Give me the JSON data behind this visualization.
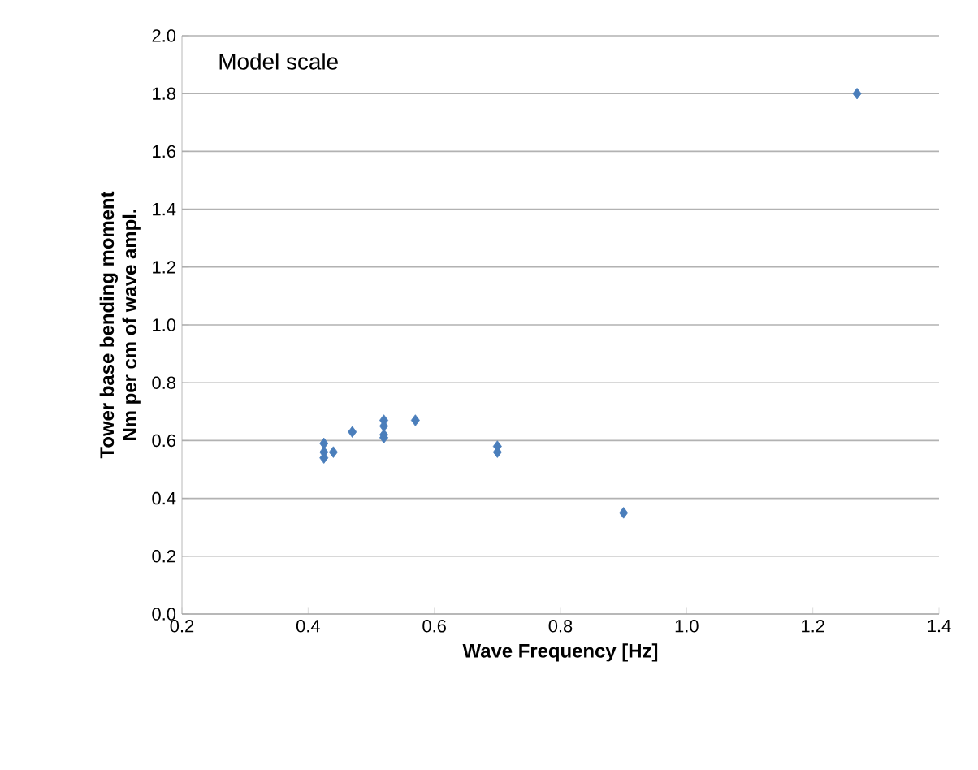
{
  "chart_data": {
    "type": "scatter",
    "xlabel": "Wave Frequency [Hz]",
    "ylabel": "Tower base bending moment\nNm per cm of wave ampl.",
    "annotations": [
      "Model scale"
    ],
    "x": [
      0.425,
      0.425,
      0.425,
      0.44,
      0.47,
      0.52,
      0.52,
      0.52,
      0.52,
      0.57,
      0.7,
      0.7,
      0.9,
      1.27
    ],
    "values": [
      0.59,
      0.56,
      0.54,
      0.56,
      0.63,
      0.67,
      0.65,
      0.62,
      0.61,
      0.67,
      0.58,
      0.56,
      0.35,
      1.8
    ],
    "color": "#4a7ebb",
    "marker": "diamond",
    "grid": "y",
    "xlim": [
      0.2,
      1.4
    ],
    "xticks": [
      {
        "value": 0.2,
        "label": "0.2"
      },
      {
        "value": 0.4,
        "label": "0.4"
      },
      {
        "value": 0.6,
        "label": "0.6"
      },
      {
        "value": 0.8,
        "label": "0.8"
      },
      {
        "value": 1.0,
        "label": "1.0"
      },
      {
        "value": 1.2,
        "label": "1.2"
      },
      {
        "value": 1.4,
        "label": "1.4"
      }
    ],
    "ylim": [
      0,
      2
    ],
    "yticks": [
      {
        "value": 0,
        "label": "0.0"
      },
      {
        "value": 0.2,
        "label": "0.2"
      },
      {
        "value": 0.4,
        "label": "0.4"
      },
      {
        "value": 0.6,
        "label": "0.6"
      },
      {
        "value": 0.8,
        "label": "0.8"
      },
      {
        "value": 1.0,
        "label": "1.0"
      },
      {
        "value": 1.2,
        "label": "1.2"
      },
      {
        "value": 1.4,
        "label": "1.4"
      },
      {
        "value": 1.6,
        "label": "1.6"
      },
      {
        "value": 1.8,
        "label": "1.8"
      },
      {
        "value": 2.0,
        "label": "2.0"
      }
    ]
  }
}
